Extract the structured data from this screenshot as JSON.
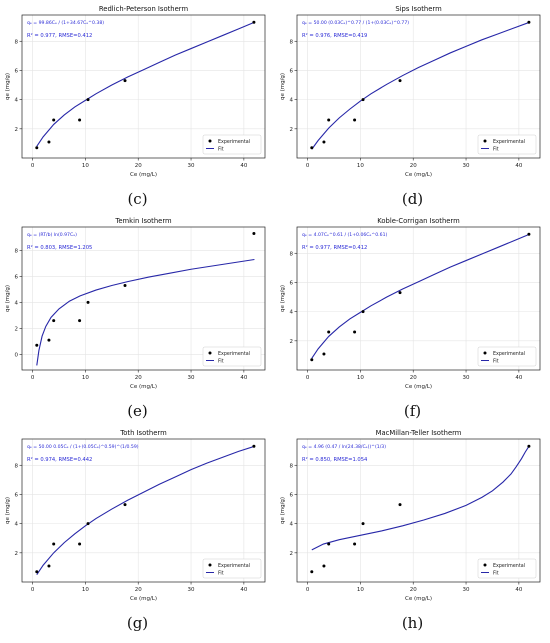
{
  "chart_data": [
    {
      "type": "scatter",
      "caption": "(c)",
      "title": "Redlich-Peterson Isotherm",
      "equation_label": "qₑ = 99.86Cₑ / (1+34.67Cₑ^0.38)",
      "stats_label": "R² = 0.977, RMSE=0.412",
      "xlabel": "Ce (mg/L)",
      "ylabel": "qe (mg/g)",
      "xlim": [
        -2,
        44
      ],
      "ylim": [
        0,
        9.8
      ],
      "xticks": [
        0,
        10,
        20,
        30,
        40
      ],
      "yticks": [
        2,
        4,
        6,
        8
      ],
      "legend": [
        "Experimental",
        "Fit"
      ],
      "legend_position": "lower-right",
      "experimental": {
        "x": [
          0.8,
          3.1,
          4.0,
          8.9,
          10.5,
          17.5,
          41.9
        ],
        "y": [
          0.7,
          1.1,
          2.6,
          2.6,
          4.0,
          5.3,
          9.3
        ]
      },
      "fit": {
        "x": [
          0.8,
          2,
          4,
          6,
          8,
          10,
          12,
          15,
          18,
          21,
          24,
          27,
          30,
          33,
          36,
          39,
          42
        ],
        "y": [
          0.8,
          1.45,
          2.3,
          2.95,
          3.5,
          3.95,
          4.4,
          5.0,
          5.55,
          6.05,
          6.55,
          7.05,
          7.5,
          7.95,
          8.4,
          8.85,
          9.3
        ]
      }
    },
    {
      "type": "scatter",
      "caption": "(d)",
      "title": "Sips Isotherm",
      "equation_label": "qₑ = 50.00 (0.03Cₑ)^0.77 / (1+(0.03Cₑ)^0.77)",
      "stats_label": "R² = 0.976, RMSE=0.419",
      "xlabel": "Ce (mg/L)",
      "ylabel": "qe (mg/g)",
      "xlim": [
        -2,
        44
      ],
      "ylim": [
        0,
        9.8
      ],
      "xticks": [
        0,
        10,
        20,
        30,
        40
      ],
      "yticks": [
        2,
        4,
        6,
        8
      ],
      "legend": [
        "Experimental",
        "Fit"
      ],
      "legend_position": "lower-right",
      "experimental": {
        "x": [
          0.8,
          3.1,
          4.0,
          8.9,
          10.5,
          17.5,
          41.9
        ],
        "y": [
          0.7,
          1.1,
          2.6,
          2.6,
          4.0,
          5.3,
          9.3
        ]
      },
      "fit": {
        "x": [
          0.8,
          2,
          4,
          6,
          8,
          10,
          12,
          15,
          18,
          21,
          24,
          27,
          30,
          33,
          36,
          39,
          42
        ],
        "y": [
          0.6,
          1.2,
          2.05,
          2.75,
          3.35,
          3.9,
          4.4,
          5.05,
          5.65,
          6.2,
          6.7,
          7.2,
          7.65,
          8.1,
          8.5,
          8.9,
          9.3
        ]
      }
    },
    {
      "type": "scatter",
      "caption": "(e)",
      "title": "Temkin Isotherm",
      "equation_label": "qₑ = (RT/b) ln(0.97Cₑ)",
      "stats_label": "R² = 0.803, RMSE=1.205",
      "xlabel": "Ce (mg/L)",
      "ylabel": "qe (mg/g)",
      "xlim": [
        -2,
        44
      ],
      "ylim": [
        -1.2,
        9.8
      ],
      "xticks": [
        0,
        10,
        20,
        30,
        40
      ],
      "yticks": [
        0,
        2,
        4,
        6,
        8
      ],
      "legend": [
        "Experimental",
        "Fit"
      ],
      "legend_position": "lower-right",
      "experimental": {
        "x": [
          0.8,
          3.1,
          4.0,
          8.9,
          10.5,
          17.5,
          41.9
        ],
        "y": [
          0.7,
          1.1,
          2.6,
          2.6,
          4.0,
          5.3,
          9.3
        ]
      },
      "fit": {
        "x": [
          0.8,
          1.2,
          1.8,
          2.5,
          3.5,
          5,
          7,
          9,
          12,
          15,
          18,
          22,
          26,
          30,
          34,
          38,
          42
        ],
        "y": [
          -0.85,
          0.3,
          1.4,
          2.15,
          2.85,
          3.5,
          4.1,
          4.5,
          4.95,
          5.3,
          5.6,
          5.95,
          6.25,
          6.55,
          6.8,
          7.05,
          7.3
        ]
      }
    },
    {
      "type": "scatter",
      "caption": "(f)",
      "title": "Koble-Corrigan Isotherm",
      "equation_label": "qₑ = 4.07Cₑ^0.61 / (1+0.06Cₑ^0.61)",
      "stats_label": "R² = 0.977, RMSE=0.412",
      "xlabel": "Ce (mg/L)",
      "ylabel": "qe (mg/g)",
      "xlim": [
        -2,
        44
      ],
      "ylim": [
        0,
        9.8
      ],
      "xticks": [
        0,
        10,
        20,
        30,
        40
      ],
      "yticks": [
        2,
        4,
        6,
        8
      ],
      "legend": [
        "Experimental",
        "Fit"
      ],
      "legend_position": "lower-right",
      "experimental": {
        "x": [
          0.8,
          3.1,
          4.0,
          8.9,
          10.5,
          17.5,
          41.9
        ],
        "y": [
          0.7,
          1.1,
          2.6,
          2.6,
          4.0,
          5.3,
          9.3
        ]
      },
      "fit": {
        "x": [
          0.8,
          2,
          4,
          6,
          8,
          10,
          12,
          15,
          18,
          21,
          24,
          27,
          30,
          33,
          36,
          39,
          42
        ],
        "y": [
          0.8,
          1.45,
          2.3,
          2.95,
          3.5,
          3.95,
          4.4,
          5.0,
          5.55,
          6.05,
          6.55,
          7.05,
          7.5,
          7.95,
          8.4,
          8.85,
          9.3
        ]
      }
    },
    {
      "type": "scatter",
      "caption": "(g)",
      "title": "Toth Isotherm",
      "equation_label": "qₑ = 50.00 0.05Cₑ / (1+(0.05Cₑ)^0.59)^(1/0.59)",
      "stats_label": "R² = 0.974, RMSE=0.442",
      "xlabel": "Ce (mg/L)",
      "ylabel": "qe (mg/g)",
      "xlim": [
        -2,
        44
      ],
      "ylim": [
        0,
        9.8
      ],
      "xticks": [
        0,
        10,
        20,
        30,
        40
      ],
      "yticks": [
        2,
        4,
        6,
        8
      ],
      "legend": [
        "Experimental",
        "Fit"
      ],
      "legend_position": "lower-right",
      "experimental": {
        "x": [
          0.8,
          3.1,
          4.0,
          8.9,
          10.5,
          17.5,
          41.9
        ],
        "y": [
          0.7,
          1.1,
          2.6,
          2.6,
          4.0,
          5.3,
          9.3
        ]
      },
      "fit": {
        "x": [
          0.8,
          2,
          4,
          6,
          8,
          10,
          12,
          15,
          18,
          21,
          24,
          27,
          30,
          33,
          36,
          39,
          42
        ],
        "y": [
          0.5,
          1.15,
          2.0,
          2.7,
          3.3,
          3.85,
          4.35,
          5.0,
          5.6,
          6.15,
          6.7,
          7.2,
          7.7,
          8.15,
          8.55,
          8.95,
          9.3
        ]
      }
    },
    {
      "type": "scatter",
      "caption": "(h)",
      "title": "MacMillan-Teller Isotherm",
      "equation_label": "qₑ = 4.96 (0.47 / ln(24.38/Cₑ))^(1/3)",
      "stats_label": "R² = 0.850, RMSE=1.054",
      "xlabel": "Ce (mg/L)",
      "ylabel": "qe (mg/g)",
      "xlim": [
        -2,
        44
      ],
      "ylim": [
        0,
        9.8
      ],
      "xticks": [
        0,
        10,
        20,
        30,
        40
      ],
      "yticks": [
        2,
        4,
        6,
        8
      ],
      "legend": [
        "Experimental",
        "Fit"
      ],
      "legend_position": "lower-right",
      "experimental": {
        "x": [
          0.8,
          3.1,
          4.0,
          8.9,
          10.5,
          17.5,
          41.9
        ],
        "y": [
          0.7,
          1.1,
          2.6,
          2.6,
          4.0,
          5.3,
          9.3
        ]
      },
      "fit": {
        "x": [
          0.8,
          3,
          6,
          10,
          14,
          18,
          22,
          26,
          30,
          33,
          35,
          37,
          38.5,
          39.5,
          40.5,
          41.2,
          41.9
        ],
        "y": [
          2.2,
          2.6,
          2.9,
          3.2,
          3.5,
          3.85,
          4.25,
          4.7,
          5.25,
          5.8,
          6.25,
          6.85,
          7.4,
          7.9,
          8.45,
          8.9,
          9.3
        ]
      }
    }
  ]
}
